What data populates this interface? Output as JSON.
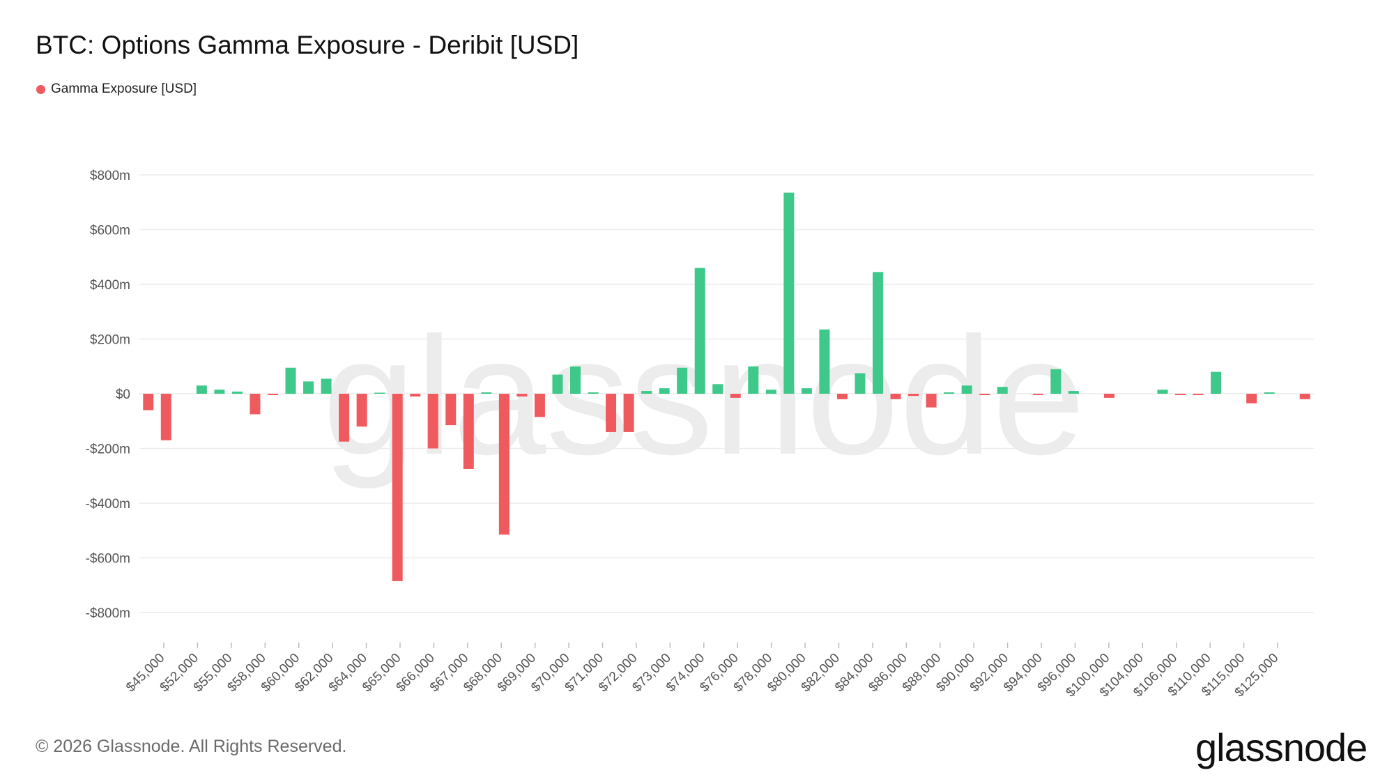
{
  "header": {
    "title": "BTC: Options Gamma Exposure - Deribit [USD]"
  },
  "legend": {
    "label": "Gamma Exposure [USD]",
    "color": "#ef5a5f"
  },
  "footer": {
    "copyright": "© 2026 Glassnode. All Rights Reserved."
  },
  "brand": {
    "logo_text": "glassnode",
    "watermark_text": "glassnode"
  },
  "colors": {
    "positive": "#3ec98a",
    "negative": "#ef5a5f",
    "grid": "#ececec",
    "axis_text": "#555555"
  },
  "chart_data": {
    "type": "bar",
    "title": "BTC: Options Gamma Exposure - Deribit [USD]",
    "series": [
      {
        "name": "Gamma Exposure [USD]"
      }
    ],
    "ylim": [
      -800,
      800
    ],
    "y_unit": "million USD",
    "y_ticks": [
      "$800m",
      "$600m",
      "$400m",
      "$200m",
      "$0",
      "-$200m",
      "-$400m",
      "-$600m",
      "-$800m"
    ],
    "y_tick_values": [
      800,
      600,
      400,
      200,
      0,
      -200,
      -400,
      -600,
      -800
    ],
    "x_tick_labels": [
      "$45,000",
      "$52,000",
      "$55,000",
      "$58,000",
      "$60,000",
      "$62,000",
      "$64,000",
      "$65,000",
      "$66,000",
      "$67,000",
      "$68,000",
      "$69,000",
      "$70,000",
      "$71,000",
      "$72,000",
      "$73,000",
      "$74,000",
      "$76,000",
      "$78,000",
      "$80,000",
      "$82,000",
      "$84,000",
      "$86,000",
      "$88,000",
      "$90,000",
      "$92,000",
      "$94,000",
      "$96,000",
      "$100,000",
      "$104,000",
      "$106,000",
      "$110,000",
      "$115,000",
      "$125,000"
    ],
    "values": [
      -60,
      -170,
      0,
      30,
      15,
      8,
      -75,
      -5,
      95,
      45,
      55,
      -175,
      -120,
      3,
      -685,
      -10,
      -200,
      -115,
      -275,
      5,
      -515,
      -10,
      -85,
      70,
      100,
      5,
      -140,
      -140,
      10,
      20,
      95,
      460,
      35,
      -15,
      100,
      15,
      735,
      20,
      235,
      -20,
      75,
      445,
      -20,
      -8,
      -50,
      5,
      30,
      -5,
      25,
      0,
      -5,
      90,
      10,
      0,
      -15,
      0,
      0,
      15,
      -5,
      -5,
      80,
      0,
      -35,
      5,
      0,
      -20
    ],
    "grid": true,
    "legend_position": "top-left"
  }
}
